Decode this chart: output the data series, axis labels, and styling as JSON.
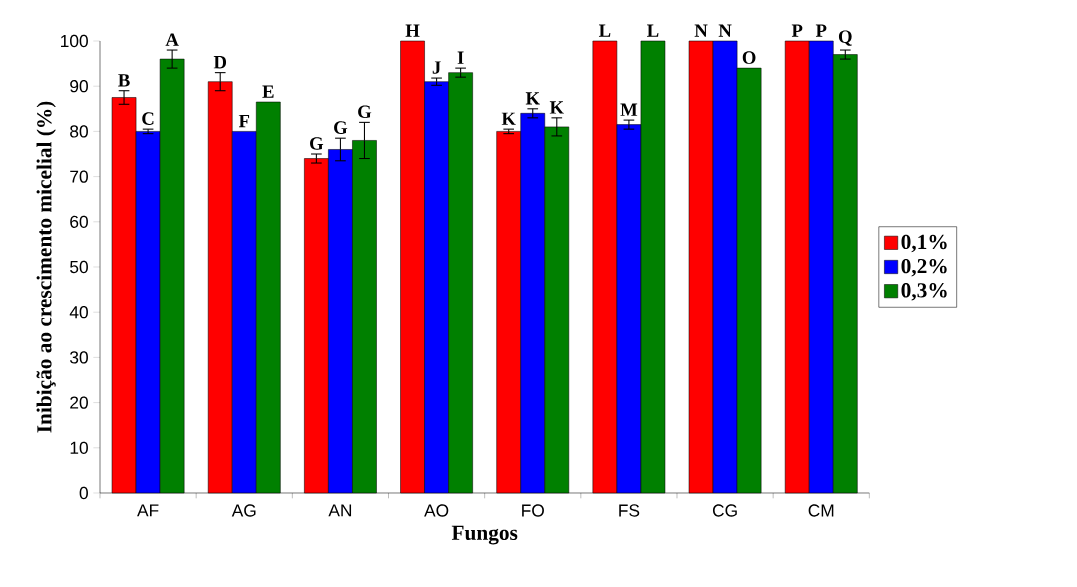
{
  "chart_data": {
    "type": "bar",
    "xlabel": "Fungos",
    "ylabel": "Inibição ao crescimento micelial (%)",
    "categories": [
      "AF",
      "AG",
      "AN",
      "AO",
      "FO",
      "FS",
      "CG",
      "CM"
    ],
    "series": [
      {
        "name": "0,1%",
        "color": "#ff0000",
        "values": [
          87.5,
          91,
          74,
          100,
          80,
          100,
          100,
          100
        ],
        "errors": [
          1.5,
          2,
          1,
          null,
          0.5,
          null,
          null,
          null
        ],
        "value_labels": [
          "B",
          "D",
          "G",
          "H",
          "K",
          "L",
          "N",
          "P"
        ]
      },
      {
        "name": "0,2%",
        "color": "#0000ff",
        "values": [
          80,
          80,
          76,
          91,
          84,
          81.5,
          100,
          100
        ],
        "errors": [
          0.5,
          null,
          2.5,
          0.8,
          1,
          1,
          null,
          null
        ],
        "value_labels": [
          "C",
          "F",
          "G",
          "J",
          "K",
          "M",
          "N",
          "P"
        ]
      },
      {
        "name": "0,3%",
        "color": "#008000",
        "values": [
          96,
          86.5,
          78,
          93,
          81,
          100,
          94,
          97
        ],
        "errors": [
          2,
          null,
          4,
          1,
          2,
          null,
          null,
          1
        ],
        "value_labels": [
          "A",
          "E",
          "G",
          "I",
          "K",
          "L",
          "O",
          "Q"
        ]
      }
    ],
    "ylim": [
      0,
      100
    ],
    "yticks": [
      0,
      10,
      20,
      30,
      40,
      50,
      60,
      70,
      80,
      90,
      100
    ],
    "grid": false,
    "legend": "right"
  }
}
